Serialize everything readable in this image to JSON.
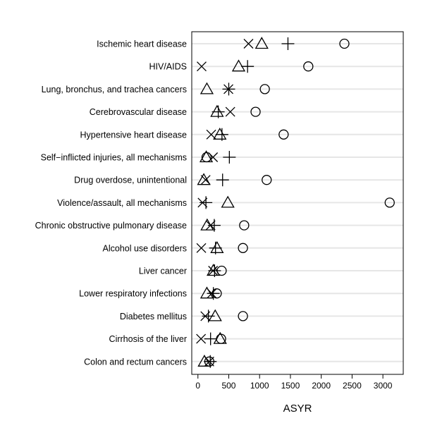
{
  "chart_data": {
    "type": "scatter",
    "title": "",
    "xlabel": "ASYR",
    "ylabel": "",
    "xlim": [
      -100,
      3330
    ],
    "x_ticks": [
      0,
      500,
      1000,
      1500,
      2000,
      2500,
      3000
    ],
    "grid": "horizontal",
    "legend": "none",
    "categories": [
      "Ischemic heart disease",
      "HIV/AIDS",
      "Lung, bronchus, and trachea cancers",
      "Cerebrovascular disease",
      "Hypertensive heart disease",
      "Self−inflicted injuries, all mechanisms",
      "Drug overdose, unintentional",
      "Violence/assault, all mechanisms",
      "Chronic obstructive pulmonary disease",
      "Alcohol use disorders",
      "Liver cancer",
      "Lower respiratory infections",
      "Diabetes mellitus",
      "Cirrhosis of the liver",
      "Colon and rectum cancers"
    ],
    "series": [
      {
        "marker": "circle",
        "values": [
          2375,
          1790,
          1085,
          935,
          1390,
          140,
          1115,
          3110,
          750,
          730,
          385,
          305,
          730,
          375,
          185
        ]
      },
      {
        "marker": "triangle",
        "values": [
          1035,
          660,
          145,
          310,
          355,
          135,
          95,
          485,
          150,
          310,
          250,
          145,
          280,
          360,
          105
        ]
      },
      {
        "marker": "plus",
        "values": [
          1460,
          805,
          500,
          330,
          390,
          510,
          400,
          130,
          265,
          285,
          270,
          250,
          170,
          205,
          200
        ]
      },
      {
        "marker": "x",
        "values": [
          820,
          60,
          495,
          525,
          215,
          245,
          125,
          75,
          205,
          55,
          245,
          225,
          120,
          50,
          185
        ]
      }
    ],
    "colors": {
      "markers": "#000000",
      "grid": "#e6e6e6",
      "axis": "#000000"
    }
  }
}
